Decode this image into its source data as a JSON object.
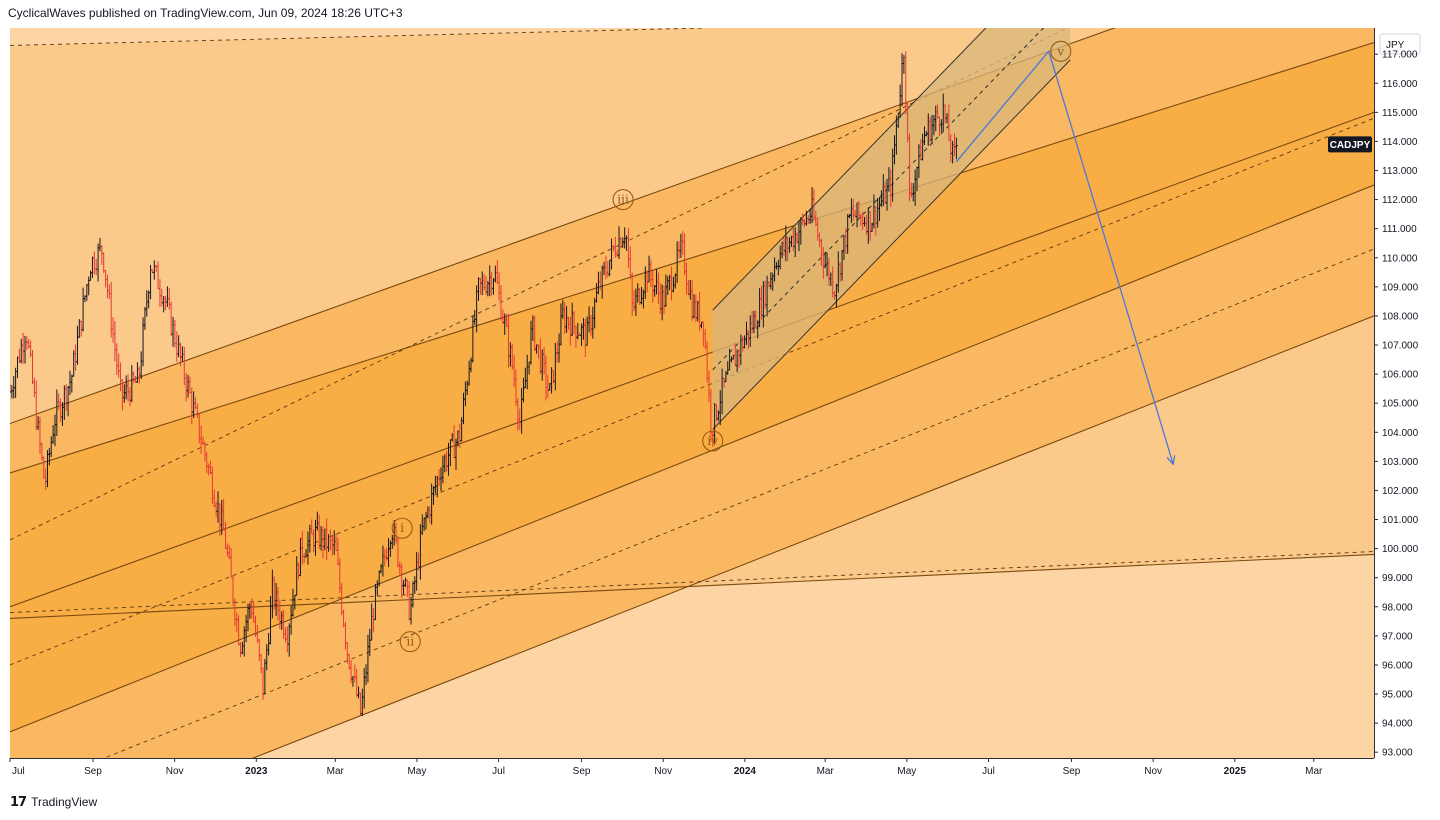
{
  "header": {
    "published_line": "CyclicalWaves published on TradingView.com, Jun 09, 2024 18:26 UTC+3"
  },
  "footer": {
    "logo_glyph": "17",
    "brand": "TradingView"
  },
  "colors": {
    "band_light": "#fbc98a",
    "band_mid": "#fbb862",
    "band_dark": "#f9ad45",
    "outer_light": "#fdd5a4",
    "channel_fill": "#d9b57a",
    "bar_up": "#131722",
    "bar_down": "#e53935",
    "projection": "#4a79d8",
    "wave_label": "#9a5a10"
  },
  "chart_data": {
    "type": "ohlc-bars",
    "symbol": "CADJPY",
    "currency": "JPY",
    "last_price_label": "CADJPY",
    "y_ticks": [
      "117.000",
      "116.000",
      "115.000",
      "114.000",
      "113.000",
      "112.000",
      "111.000",
      "110.000",
      "109.000",
      "108.000",
      "107.000",
      "106.000",
      "105.000",
      "104.000",
      "103.000",
      "102.000",
      "101.000",
      "100.000",
      "99.000",
      "98.000",
      "97.000",
      "96.000",
      "95.000",
      "94.000",
      "93.000"
    ],
    "ylim": [
      92.8,
      117.9
    ],
    "x_ticks": [
      "Jul",
      "Sep",
      "Nov",
      "2023",
      "Mar",
      "May",
      "Jul",
      "Sep",
      "Nov",
      "2024",
      "Mar",
      "May",
      "Jul",
      "Sep",
      "Nov",
      "2025",
      "Mar"
    ],
    "price_path": [
      [
        "2022-07-01",
        105.4
      ],
      [
        "2022-07-13",
        107.6
      ],
      [
        "2022-07-22",
        104.0
      ],
      [
        "2022-07-27",
        102.2
      ],
      [
        "2022-08-03",
        104.4
      ],
      [
        "2022-08-16",
        105.9
      ],
      [
        "2022-08-30",
        109.8
      ],
      [
        "2022-09-08",
        110.3
      ],
      [
        "2022-09-22",
        105.2
      ],
      [
        "2022-10-05",
        105.8
      ],
      [
        "2022-10-14",
        109.8
      ],
      [
        "2022-10-24",
        108.7
      ],
      [
        "2022-11-10",
        105.7
      ],
      [
        "2022-11-25",
        103.0
      ],
      [
        "2022-12-08",
        100.5
      ],
      [
        "2022-12-20",
        96.7
      ],
      [
        "2022-12-28",
        98.2
      ],
      [
        "2023-01-06",
        95.2
      ],
      [
        "2023-01-13",
        98.5
      ],
      [
        "2023-01-24",
        97.1
      ],
      [
        "2023-02-03",
        99.9
      ],
      [
        "2023-02-14",
        100.5
      ],
      [
        "2023-03-01",
        100.0
      ],
      [
        "2023-03-10",
        96.5
      ],
      [
        "2023-03-20",
        94.3
      ],
      [
        "2023-03-29",
        97.8
      ],
      [
        "2023-04-12",
        100.8
      ],
      [
        "2023-04-26",
        97.8
      ],
      [
        "2023-05-05",
        100.6
      ],
      [
        "2023-05-19",
        102.8
      ],
      [
        "2023-06-02",
        103.9
      ],
      [
        "2023-06-16",
        108.9
      ],
      [
        "2023-06-28",
        109.5
      ],
      [
        "2023-07-12",
        106.1
      ],
      [
        "2023-07-17",
        104.3
      ],
      [
        "2023-07-26",
        107.6
      ],
      [
        "2023-08-08",
        105.3
      ],
      [
        "2023-08-18",
        108.0
      ],
      [
        "2023-09-05",
        107.3
      ],
      [
        "2023-09-14",
        109.0
      ],
      [
        "2023-09-26",
        110.4
      ],
      [
        "2023-10-04",
        111.0
      ],
      [
        "2023-10-09",
        108.2
      ],
      [
        "2023-10-20",
        109.5
      ],
      [
        "2023-11-01",
        108.5
      ],
      [
        "2023-11-15",
        110.3
      ],
      [
        "2023-11-23",
        108.3
      ],
      [
        "2023-12-01",
        107.8
      ],
      [
        "2023-12-07",
        104.1
      ],
      [
        "2023-12-14",
        105.3
      ],
      [
        "2023-12-27",
        106.8
      ],
      [
        "2024-01-10",
        108.0
      ],
      [
        "2024-01-25",
        110.0
      ],
      [
        "2024-02-08",
        110.8
      ],
      [
        "2024-02-20",
        111.6
      ],
      [
        "2024-03-01",
        109.8
      ],
      [
        "2024-03-08",
        109.0
      ],
      [
        "2024-03-20",
        111.5
      ],
      [
        "2024-04-04",
        111.3
      ],
      [
        "2024-04-19",
        112.5
      ],
      [
        "2024-04-29",
        117.3
      ],
      [
        "2024-05-03",
        112.0
      ],
      [
        "2024-05-14",
        114.2
      ],
      [
        "2024-05-28",
        115.1
      ],
      [
        "2024-06-05",
        113.3
      ],
      [
        "2024-06-07",
        113.9
      ]
    ],
    "wave_labels": [
      {
        "text": "i",
        "date": "2023-04-20",
        "price": 100.7
      },
      {
        "text": "ii",
        "date": "2023-04-26",
        "price": 96.8
      },
      {
        "text": "iii",
        "date": "2023-10-02",
        "price": 112.0
      },
      {
        "text": "iv",
        "date": "2023-12-08",
        "price": 103.7
      },
      {
        "text": "v",
        "date": "2024-08-24",
        "price": 117.1
      }
    ],
    "projection_path": [
      [
        "2024-06-07",
        113.3
      ],
      [
        "2024-08-15",
        117.1
      ],
      [
        "2024-11-16",
        102.9
      ]
    ],
    "rising_channel": {
      "lower": [
        [
          "2023-12-08",
          104.1
        ],
        [
          "2024-08-31",
          116.8
        ]
      ],
      "upper": [
        [
          "2023-12-08",
          108.2
        ],
        [
          "2024-08-31",
          120.9
        ]
      ]
    },
    "pitchfork_lines": [
      {
        "style": "solid",
        "p1": [
          "2022-07-01",
          104.3
        ],
        "p2": [
          "2025-04-15",
          121.1
        ]
      },
      {
        "style": "solid",
        "p1": [
          "2022-07-01",
          102.6
        ],
        "p2": [
          "2025-04-15",
          117.4
        ]
      },
      {
        "style": "solid",
        "p1": [
          "2022-07-01",
          98.0
        ],
        "p2": [
          "2025-04-15",
          115.0
        ]
      },
      {
        "style": "solid",
        "p1": [
          "2022-07-01",
          93.7
        ],
        "p2": [
          "2025-04-15",
          112.5
        ]
      },
      {
        "style": "solid",
        "p1": [
          "2022-07-01",
          89.5
        ],
        "p2": [
          "2025-04-15",
          108.0
        ]
      },
      {
        "style": "dashed",
        "p1": [
          "2022-07-01",
          100.3
        ],
        "p2": [
          "2025-04-15",
          123.0
        ]
      },
      {
        "style": "dashed",
        "p1": [
          "2022-07-01",
          96.0
        ],
        "p2": [
          "2025-04-15",
          114.8
        ]
      },
      {
        "style": "dashed",
        "p1": [
          "2022-07-01",
          91.5
        ],
        "p2": [
          "2025-04-15",
          110.3
        ]
      },
      {
        "style": "solid",
        "p1": [
          "2022-07-01",
          97.6
        ],
        "p2": [
          "2025-04-15",
          99.8
        ]
      },
      {
        "style": "dashed",
        "p1": [
          "2022-07-01",
          97.8
        ],
        "p2": [
          "2025-04-15",
          99.9
        ]
      },
      {
        "style": "dashed",
        "p1": [
          "2022-07-01",
          117.3
        ],
        "p2": [
          "2023-12-01",
          117.9
        ]
      }
    ]
  }
}
